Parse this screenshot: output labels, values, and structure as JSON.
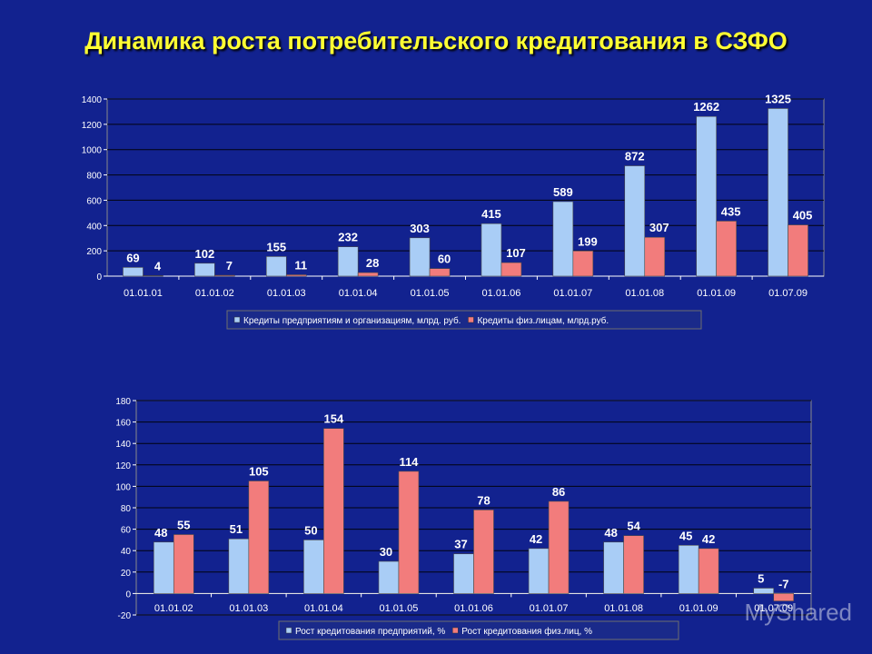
{
  "title": "Динамика роста потребительского кредитования в СЗФО",
  "watermark": "MyShared",
  "colors": {
    "background": "#12228f",
    "plot_area": "#12228f",
    "title": "#ffff33",
    "series_blue": "#a9cdf6",
    "series_red": "#f27c7c",
    "axis_text": "#ffffff"
  },
  "chart_data": [
    {
      "type": "bar",
      "categories": [
        "01.01.01",
        "01.01.02",
        "01.01.03",
        "01.01.04",
        "01.01.05",
        "01.01.06",
        "01.01.07",
        "01.01.08",
        "01.01.09",
        "01.07.09"
      ],
      "series": [
        {
          "name": "Кредиты предприятиям и организациям, млрд. руб.",
          "values": [
            69,
            102,
            155,
            232,
            303,
            415,
            589,
            872,
            1262,
            1325
          ]
        },
        {
          "name": "Кредиты физ.лицам, млрд.руб.",
          "values": [
            4,
            7,
            11,
            28,
            60,
            107,
            199,
            307,
            435,
            405
          ]
        }
      ],
      "ylim": [
        0,
        1400
      ],
      "yticks": [
        0,
        200,
        400,
        600,
        800,
        1000,
        1200,
        1400
      ],
      "grid": true,
      "legend": "bottom"
    },
    {
      "type": "bar",
      "categories": [
        "01.01.02",
        "01.01.03",
        "01.01.04",
        "01.01.05",
        "01.01.06",
        "01.01.07",
        "01.01.08",
        "01.01.09",
        "01.07.09"
      ],
      "series": [
        {
          "name": "Рост кредитования предприятий, %",
          "values": [
            48,
            51,
            50,
            30,
            37,
            42,
            48,
            45,
            5
          ]
        },
        {
          "name": "Рост кредитования физ.лиц, %",
          "values": [
            55,
            105,
            154,
            114,
            78,
            86,
            54,
            42,
            -7
          ]
        }
      ],
      "ylim": [
        -20,
        180
      ],
      "yticks": [
        -20,
        0,
        20,
        40,
        60,
        80,
        100,
        120,
        140,
        160,
        180
      ],
      "grid": true,
      "legend": "bottom"
    }
  ]
}
